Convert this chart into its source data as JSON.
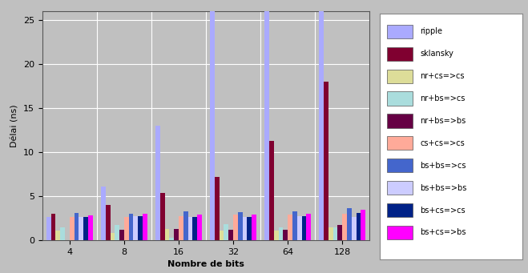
{
  "categories": [
    "4",
    "8",
    "16",
    "32",
    "64",
    "128"
  ],
  "series": {
    "ripple": [
      2.6,
      6.1,
      13.0,
      26.5,
      26.5,
      26.5
    ],
    "sklansky": [
      3.0,
      4.0,
      5.4,
      7.2,
      11.3,
      18.0
    ],
    "nr+cs=>cs": [
      1.1,
      0.8,
      1.3,
      1.1,
      1.1,
      1.5
    ],
    "nr+bs=>cs": [
      1.5,
      1.7,
      0.3,
      1.8,
      1.5,
      1.5
    ],
    "nr+bs=>bs": [
      0.0,
      1.2,
      1.3,
      1.2,
      1.2,
      1.7
    ],
    "cs+cs=>cs": [
      2.6,
      2.6,
      2.7,
      2.9,
      2.9,
      3.0
    ],
    "bs+bs=>cs": [
      3.1,
      3.0,
      3.3,
      3.2,
      3.3,
      3.6
    ],
    "bs+bs=>bs": [
      2.6,
      2.7,
      2.6,
      2.6,
      2.7,
      2.6
    ],
    "bs+cs=>cs": [
      2.6,
      2.7,
      2.6,
      2.6,
      2.7,
      3.1
    ],
    "bs+cs=>bs": [
      2.8,
      3.0,
      2.9,
      2.9,
      3.0,
      3.5
    ]
  },
  "colors": {
    "ripple": "#aaaaff",
    "sklansky": "#800030",
    "nr+cs=>cs": "#dddd99",
    "nr+bs=>cs": "#aadddd",
    "nr+bs=>bs": "#660044",
    "cs+cs=>cs": "#ffaa99",
    "bs+bs=>cs": "#4466cc",
    "bs+bs=>bs": "#ccccff",
    "bs+cs=>cs": "#002288",
    "bs+cs=>bs": "#ff00ff"
  },
  "ylabel": "Délai (ns)",
  "xlabel": "Nombre de bits",
  "ylim": [
    0,
    26
  ],
  "yticks": [
    0,
    5,
    10,
    15,
    20,
    25
  ],
  "background_color": "#c0c0c0",
  "plot_bg_color": "#b8b8b8",
  "grid_color": "#ffffff"
}
